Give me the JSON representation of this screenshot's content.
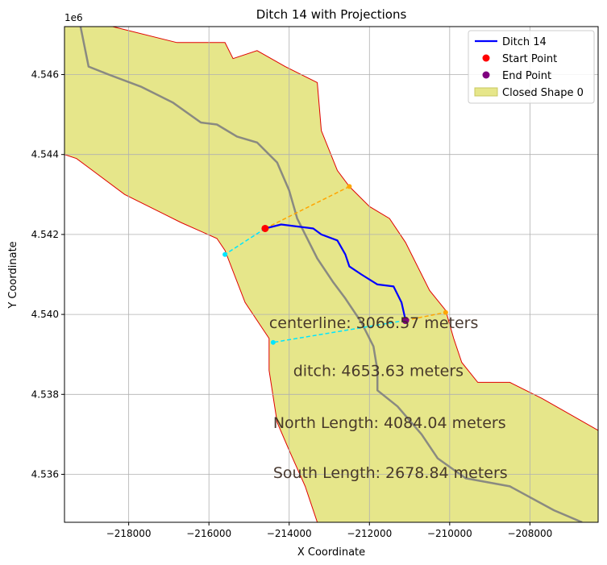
{
  "chart_data": {
    "type": "map",
    "title": "Ditch 14 with Projections",
    "xlabel": "X Coordinate",
    "ylabel": "Y Coordinate",
    "y_offset_label": "1e6",
    "xlim": [
      -219600,
      -206300
    ],
    "ylim": [
      4534800,
      4547200
    ],
    "x_ticks": [
      -218000,
      -216000,
      -214000,
      -212000,
      -210000,
      -208000
    ],
    "x_tick_labels": [
      "−218000",
      "−216000",
      "−214000",
      "−212000",
      "−210000",
      "−208000"
    ],
    "y_ticks": [
      4536000,
      4538000,
      4540000,
      4542000,
      4544000,
      4546000
    ],
    "y_tick_labels": [
      "4.536",
      "4.538",
      "4.540",
      "4.542",
      "4.544",
      "4.546"
    ],
    "grid": true,
    "legend_position": "top-right",
    "legend": [
      {
        "label": "Ditch 14",
        "kind": "line",
        "color": "#0000ff"
      },
      {
        "label": "Start Point",
        "kind": "marker",
        "color": "#ff0000"
      },
      {
        "label": "End Point",
        "kind": "marker",
        "color": "#800080"
      },
      {
        "label": "Closed Shape 0",
        "kind": "patch",
        "color": "#e6e68a"
      }
    ],
    "ditch": {
      "color": "#0000ff",
      "points": [
        [
          -214600,
          4542150
        ],
        [
          -214200,
          4542250
        ],
        [
          -213800,
          4542200
        ],
        [
          -213400,
          4542150
        ],
        [
          -213200,
          4542000
        ],
        [
          -212800,
          4541850
        ],
        [
          -212600,
          4541500
        ],
        [
          -212500,
          4541200
        ],
        [
          -212200,
          4541000
        ],
        [
          -211800,
          4540750
        ],
        [
          -211400,
          4540700
        ],
        [
          -211200,
          4540300
        ],
        [
          -211100,
          4539850
        ]
      ]
    },
    "start_point": {
      "x": -214600,
      "y": 4542150,
      "color": "#ff0000"
    },
    "end_point": {
      "x": -211100,
      "y": 4539850,
      "color": "#800080"
    },
    "centerline": {
      "color": "#808080",
      "points": [
        [
          -219200,
          4547200
        ],
        [
          -219000,
          4546200
        ],
        [
          -218500,
          4546000
        ],
        [
          -217700,
          4545700
        ],
        [
          -216900,
          4545300
        ],
        [
          -216200,
          4544800
        ],
        [
          -215800,
          4544750
        ],
        [
          -215300,
          4544450
        ],
        [
          -214800,
          4544300
        ],
        [
          -214300,
          4543800
        ],
        [
          -214000,
          4543100
        ],
        [
          -213800,
          4542400
        ],
        [
          -213600,
          4542000
        ],
        [
          -213300,
          4541400
        ],
        [
          -212900,
          4540800
        ],
        [
          -212600,
          4540400
        ],
        [
          -212200,
          4539800
        ],
        [
          -211900,
          4539200
        ],
        [
          -211800,
          4538600
        ],
        [
          -211800,
          4538100
        ],
        [
          -211300,
          4537700
        ],
        [
          -210700,
          4537000
        ],
        [
          -210300,
          4536400
        ],
        [
          -209600,
          4535900
        ],
        [
          -208500,
          4535700
        ],
        [
          -207400,
          4535100
        ],
        [
          -206700,
          4534800
        ]
      ]
    },
    "north_projection": {
      "color": "#ffa500",
      "points": [
        [
          -214600,
          4542150
        ],
        [
          -212500,
          4543200
        ]
      ]
    },
    "south_projection": {
      "color": "#00e5ff",
      "points": [
        [
          -214600,
          4542150
        ],
        [
          -215600,
          4541500
        ]
      ]
    },
    "end_north_projection": {
      "color": "#ffa500",
      "points": [
        [
          -211100,
          4539850
        ],
        [
          -210100,
          4540050
        ]
      ]
    },
    "end_south_projection": {
      "color": "#00e5ff",
      "points": [
        [
          -211100,
          4539850
        ],
        [
          -214400,
          4539300
        ]
      ]
    },
    "closed_shape_0": {
      "color": "#e6e68a",
      "points": [
        [
          -219600,
          4547200
        ],
        [
          -218400,
          4547200
        ],
        [
          -216800,
          4546800
        ],
        [
          -215600,
          4546800
        ],
        [
          -215400,
          4546400
        ],
        [
          -214800,
          4546600
        ],
        [
          -214100,
          4546200
        ],
        [
          -213300,
          4545800
        ],
        [
          -213200,
          4544600
        ],
        [
          -212800,
          4543600
        ],
        [
          -212500,
          4543200
        ],
        [
          -212000,
          4542700
        ],
        [
          -211500,
          4542400
        ],
        [
          -211100,
          4541800
        ],
        [
          -210500,
          4540600
        ],
        [
          -210100,
          4540100
        ],
        [
          -209900,
          4539400
        ],
        [
          -209700,
          4538800
        ],
        [
          -209300,
          4538300
        ],
        [
          -208500,
          4538300
        ],
        [
          -207700,
          4537900
        ],
        [
          -206300,
          4537100
        ],
        [
          -206300,
          4534800
        ],
        [
          -213300,
          4534800
        ],
        [
          -213600,
          4535700
        ],
        [
          -214000,
          4536600
        ],
        [
          -214300,
          4537300
        ],
        [
          -214500,
          4538600
        ],
        [
          -214500,
          4539400
        ],
        [
          -215100,
          4540300
        ],
        [
          -215600,
          4541600
        ],
        [
          -215800,
          4541900
        ],
        [
          -216700,
          4542300
        ],
        [
          -217100,
          4542500
        ],
        [
          -218100,
          4543000
        ],
        [
          -218900,
          4543600
        ],
        [
          -219300,
          4543900
        ],
        [
          -219600,
          4544000
        ]
      ]
    },
    "annotations": [
      {
        "text": "centerline: 3066.57 meters",
        "x": -214500,
        "y": 4539800
      },
      {
        "text": "ditch: 4653.63 meters",
        "x": -213900,
        "y": 4538600
      },
      {
        "text": "North Length: 4084.04 meters",
        "x": -214400,
        "y": 4537300
      },
      {
        "text": "South Length: 2678.84 meters",
        "x": -214400,
        "y": 4536050
      }
    ]
  }
}
